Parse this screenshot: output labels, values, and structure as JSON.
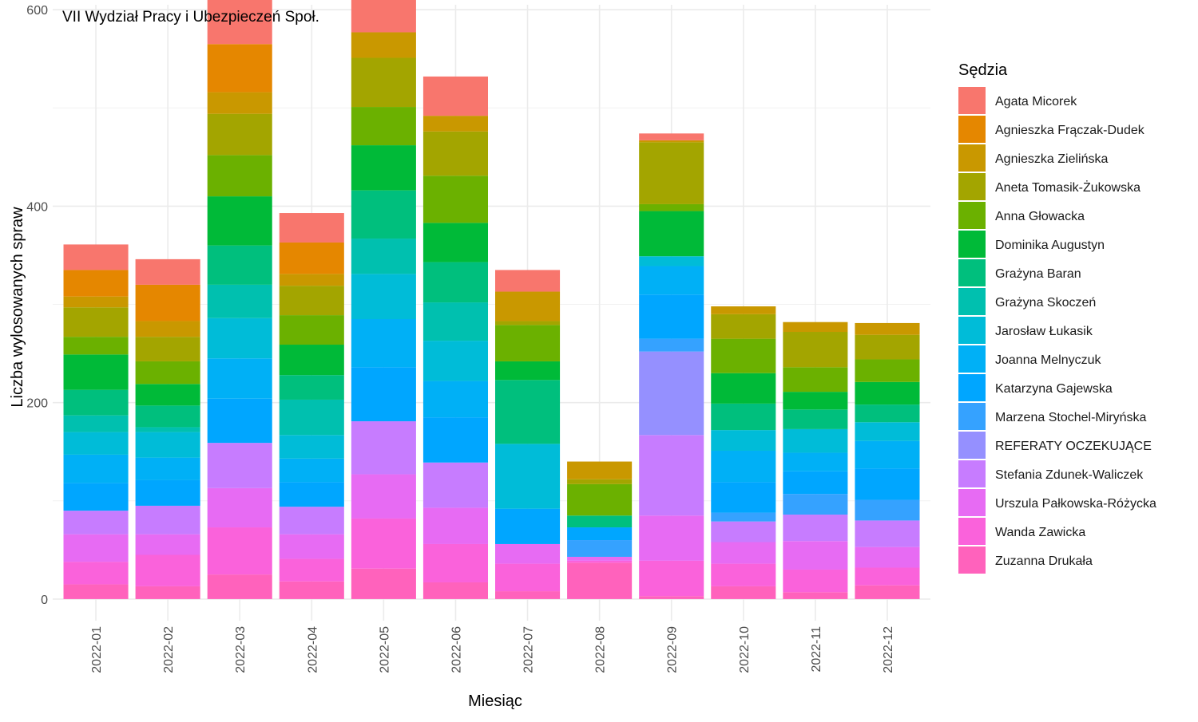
{
  "chart_data": {
    "type": "bar",
    "stacked": true,
    "title": "VII Wydział Pracy i Ubezpieczeń Społ.",
    "xlabel": "Miesiąc",
    "ylabel": "Liczba wylosowanych spraw",
    "ylim": [
      -22,
      605
    ],
    "yticks": [
      0,
      200,
      400,
      600
    ],
    "grid": true,
    "legend_title": "Sędzia",
    "legend_position": "right",
    "categories": [
      "2022-01",
      "2022-02",
      "2022-03",
      "2022-04",
      "2022-05",
      "2022-06",
      "2022-07",
      "2022-08",
      "2022-09",
      "2022-10",
      "2022-11",
      "2022-12"
    ],
    "series": [
      {
        "name": "Agata Micorek",
        "color": "#F8766D",
        "values": [
          26,
          26,
          45,
          30,
          50,
          40,
          22,
          0,
          7,
          0,
          0,
          0
        ]
      },
      {
        "name": "Agnieszka Frączak-Dudek",
        "color": "#E58700",
        "values": [
          27,
          37,
          49,
          32,
          0,
          0,
          0,
          0,
          0,
          0,
          0,
          0
        ]
      },
      {
        "name": "Agnieszka Zielińska",
        "color": "#C99800",
        "values": [
          11,
          16,
          22,
          12,
          26,
          16,
          30,
          18,
          2,
          8,
          10,
          12
        ]
      },
      {
        "name": "Aneta Tomasik-Żukowska",
        "color": "#A3A500",
        "values": [
          30,
          25,
          42,
          30,
          50,
          45,
          4,
          5,
          63,
          25,
          36,
          25
        ]
      },
      {
        "name": "Anna Głowacka",
        "color": "#6BB100",
        "values": [
          18,
          23,
          42,
          30,
          39,
          48,
          37,
          32,
          7,
          35,
          25,
          23
        ]
      },
      {
        "name": "Dominika Augustyn",
        "color": "#00BA38",
        "values": [
          36,
          22,
          50,
          31,
          46,
          40,
          19,
          0,
          46,
          31,
          18,
          23
        ]
      },
      {
        "name": "Grażyna Baran",
        "color": "#00BF7D",
        "values": [
          26,
          22,
          40,
          25,
          49,
          41,
          65,
          12,
          0,
          27,
          20,
          18
        ]
      },
      {
        "name": "Grażyna Skoczeń",
        "color": "#00C0AF",
        "values": [
          17,
          5,
          34,
          36,
          36,
          39,
          0,
          0,
          0,
          0,
          0,
          0
        ]
      },
      {
        "name": "Jarosław Łukasik",
        "color": "#00BCD8",
        "values": [
          23,
          26,
          41,
          24,
          46,
          41,
          66,
          0,
          10,
          21,
          24,
          19
        ]
      },
      {
        "name": "Joanna Melnyczuk",
        "color": "#00B0F6",
        "values": [
          29,
          23,
          41,
          24,
          49,
          37,
          0,
          0,
          29,
          32,
          19,
          28
        ]
      },
      {
        "name": "Katarzyna Gajewska",
        "color": "#00A6FF",
        "values": [
          28,
          26,
          45,
          25,
          55,
          46,
          36,
          13,
          45,
          31,
          23,
          32
        ]
      },
      {
        "name": "Marzena Stochel-Miryńska",
        "color": "#35A2FF",
        "values": [
          0,
          0,
          0,
          0,
          0,
          0,
          0,
          17,
          13,
          9,
          21,
          21
        ]
      },
      {
        "name": "REFERATY OCZEKUJĄCE",
        "color": "#9590FF",
        "values": [
          0,
          0,
          0,
          0,
          0,
          0,
          0,
          0,
          85,
          0,
          0,
          0
        ]
      },
      {
        "name": "Stefania Zdunek-Waliczek",
        "color": "#C77CFF",
        "values": [
          24,
          29,
          46,
          28,
          54,
          46,
          0,
          0,
          82,
          21,
          27,
          27
        ]
      },
      {
        "name": "Urszula Pałkowska-Różycka",
        "color": "#E76BF3",
        "values": [
          28,
          21,
          40,
          25,
          45,
          37,
          20,
          4,
          46,
          22,
          29,
          21
        ]
      },
      {
        "name": "Wanda Zawicka",
        "color": "#FA62DB",
        "values": [
          23,
          32,
          48,
          23,
          51,
          39,
          28,
          2,
          36,
          23,
          23,
          18
        ]
      },
      {
        "name": "Zuzanna Drukała",
        "color": "#FF62BC",
        "values": [
          15,
          13,
          25,
          18,
          31,
          17,
          8,
          37,
          3,
          13,
          7,
          14
        ]
      }
    ]
  }
}
